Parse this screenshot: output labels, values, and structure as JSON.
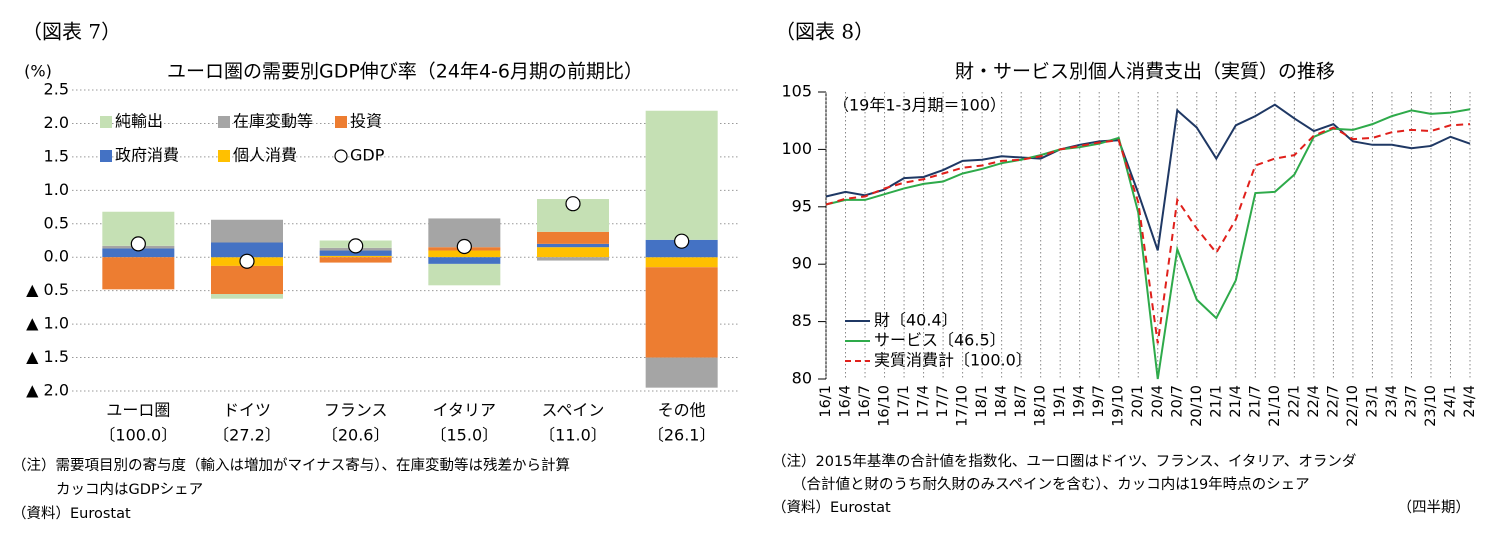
{
  "chart_data": [
    {
      "type": "bar",
      "figure_label": "（図表 7）",
      "title": "ユーロ圏の需要別GDP伸び率（24年4-6月期の前期比）",
      "y_unit": "(%)",
      "categories": [
        "ユーロ圏",
        "ドイツ",
        "フランス",
        "イタリア",
        "スペイン",
        "その他"
      ],
      "category_shares": [
        "〔100.0〕",
        "〔27.2〕",
        "〔20.6〕",
        "〔15.0〕",
        "〔11.0〕",
        "〔26.1〕"
      ],
      "series": [
        {
          "name": "純輸出",
          "color": "#c5e0b4",
          "values": [
            0.51,
            -0.07,
            0.11,
            -0.32,
            0.49,
            1.93
          ]
        },
        {
          "name": "在庫変動等",
          "color": "#a5a5a5",
          "values": [
            0.04,
            0.34,
            0.04,
            0.43,
            -0.05,
            -0.45
          ]
        },
        {
          "name": "投資",
          "color": "#ed7d31",
          "values": [
            -0.48,
            -0.42,
            -0.08,
            0.05,
            0.18,
            -1.35
          ]
        },
        {
          "name": "政府消費",
          "color": "#4472c4",
          "values": [
            0.13,
            0.22,
            0.08,
            -0.1,
            0.05,
            0.26
          ]
        },
        {
          "name": "個人消費",
          "color": "#ffc000",
          "values": [
            0,
            -0.13,
            0.02,
            0.1,
            0.15,
            -0.15
          ]
        }
      ],
      "markers": {
        "name": "GDP",
        "values": [
          0.2,
          -0.06,
          0.17,
          0.16,
          0.8,
          0.24
        ]
      },
      "ylim": [
        -2.0,
        2.5
      ],
      "yticks": [
        2.5,
        {
          "value": 2.0,
          "label": "2.0"
        },
        1.5,
        {
          "value": 1.0,
          "label": "1.0"
        },
        0.5,
        {
          "value": 0,
          "label": "0.0"
        },
        {
          "value": -0.5,
          "label": "▲ 0.5"
        },
        {
          "value": -1.0,
          "label": "▲ 1.0"
        },
        {
          "value": -1.5,
          "label": "▲ 1.5"
        },
        {
          "value": -2.0,
          "label": "▲ 2.0"
        }
      ],
      "grid": true,
      "notes": [
        "（注）需要項目別の寄与度（輸入は増加がマイナス寄与）、在庫変動等は残差から計算",
        "カッコ内はGDPシェア"
      ],
      "source": "（資料）Eurostat"
    },
    {
      "type": "line",
      "figure_label": "（図表 8）",
      "title": "財・サービス別個人消費支出（実質）の推移",
      "annotation": "（19年1-3月期＝100）",
      "categories": [
        "16/1",
        "16/4",
        "16/7",
        "16/10",
        "17/1",
        "17/4",
        "17/7",
        "17/10",
        "18/1",
        "18/4",
        "18/7",
        "18/10",
        "19/1",
        "19/4",
        "19/7",
        "19/10",
        "20/1",
        "20/4",
        "20/7",
        "20/10",
        "21/1",
        "21/4",
        "21/7",
        "21/10",
        "22/1",
        "22/4",
        "22/7",
        "22/10",
        "23/1",
        "23/4",
        "23/7",
        "23/10",
        "24/1",
        "24/4"
      ],
      "series": [
        {
          "name": "財〔40.4〕",
          "color": "#1f3864",
          "dash": false,
          "values": [
            95.9,
            96.3,
            96.0,
            96.5,
            97.5,
            97.6,
            98.2,
            99.0,
            99.1,
            99.4,
            99.3,
            99.2,
            100,
            100.4,
            100.7,
            100.8,
            96.2,
            91.2,
            103.4,
            101.9,
            99.2,
            102.1,
            102.9,
            103.9,
            102.7,
            101.6,
            102.2,
            100.7,
            100.4,
            100.4,
            100.1,
            100.3,
            101.1,
            100.5
          ]
        },
        {
          "name": "サービス〔46.5〕",
          "color": "#2eaa4a",
          "dash": false,
          "values": [
            95.2,
            95.6,
            95.6,
            96.1,
            96.6,
            97.0,
            97.2,
            97.9,
            98.3,
            98.8,
            99.1,
            99.5,
            100,
            100.2,
            100.5,
            101.0,
            94.5,
            80.0,
            91.3,
            86.9,
            85.3,
            88.6,
            96.2,
            96.3,
            97.8,
            101.1,
            101.8,
            101.7,
            102.2,
            102.9,
            103.4,
            103.1,
            103.2,
            103.5
          ]
        },
        {
          "name": "実質消費計〔100.0〕",
          "color": "#e0201b",
          "dash": true,
          "values": [
            95.2,
            95.7,
            95.9,
            96.6,
            97.1,
            97.4,
            97.9,
            98.4,
            98.6,
            99.0,
            99.1,
            99.4,
            100,
            100.3,
            100.6,
            100.8,
            95.4,
            83.1,
            95.6,
            93.1,
            91.0,
            93.9,
            98.6,
            99.2,
            99.5,
            101.2,
            101.9,
            100.9,
            101.0,
            101.5,
            101.7,
            101.6,
            102.1,
            102.2
          ]
        }
      ],
      "ylim": [
        80,
        105
      ],
      "yticks": [
        80,
        85,
        90,
        95,
        100,
        105
      ],
      "xgrid": true,
      "x_unit": "（四半期）",
      "notes": [
        "（注）2015年基準の合計値を指数化、ユーロ圏はドイツ、フランス、イタリア、オランダ",
        "（合計値と財のうち耐久財のみスペインを含む）、カッコ内は19年時点のシェア"
      ],
      "source": "（資料）Eurostat"
    }
  ]
}
